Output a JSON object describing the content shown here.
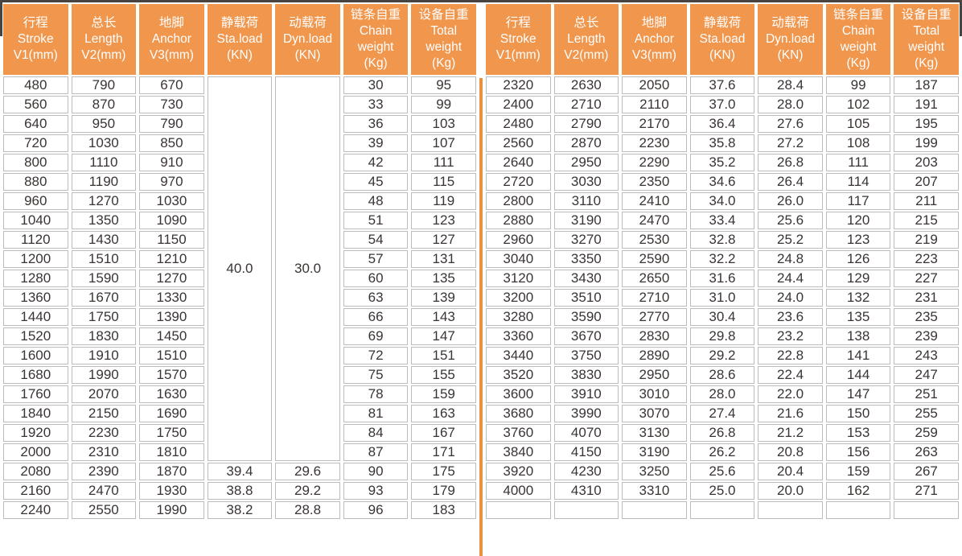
{
  "colors": {
    "header_bg": "#F0964D",
    "header_text": "#FFFFFF",
    "divider_orange": "#E9913F",
    "cell_border": "#BCBCBC",
    "data_text": "#3A3433",
    "outer_frame": "#484441"
  },
  "table": {
    "headers": [
      "行程\nStroke\nV1(mm)",
      "总长\nLength\nV2(mm)",
      "地脚\nAnchor\nV3(mm)",
      "静载荷\nSta.load\n(KN)",
      "动载荷\nDyn.load\n(KN)",
      "链条自重\nChain\nweight\n(Kg)",
      "设备自重\nTotal\nweight\n(Kg)"
    ],
    "column_keys": [
      "stroke",
      "length",
      "anchor",
      "sta-load",
      "dyn-load",
      "chain-weight",
      "total-weight"
    ],
    "left": {
      "merged_sta_load": "40.0",
      "merged_dyn_load": "30.0",
      "merged_row_span": 20,
      "rows": [
        [
          "480",
          "790",
          "670",
          "30",
          "95"
        ],
        [
          "560",
          "870",
          "730",
          "33",
          "99"
        ],
        [
          "640",
          "950",
          "790",
          "36",
          "103"
        ],
        [
          "720",
          "1030",
          "850",
          "39",
          "107"
        ],
        [
          "800",
          "1110",
          "910",
          "42",
          "111"
        ],
        [
          "880",
          "1190",
          "970",
          "45",
          "115"
        ],
        [
          "960",
          "1270",
          "1030",
          "48",
          "119"
        ],
        [
          "1040",
          "1350",
          "1090",
          "51",
          "123"
        ],
        [
          "1120",
          "1430",
          "1150",
          "54",
          "127"
        ],
        [
          "1200",
          "1510",
          "1210",
          "57",
          "131"
        ],
        [
          "1280",
          "1590",
          "1270",
          "60",
          "135"
        ],
        [
          "1360",
          "1670",
          "1330",
          "63",
          "139"
        ],
        [
          "1440",
          "1750",
          "1390",
          "66",
          "143"
        ],
        [
          "1520",
          "1830",
          "1450",
          "69",
          "147"
        ],
        [
          "1600",
          "1910",
          "1510",
          "72",
          "151"
        ],
        [
          "1680",
          "1990",
          "1570",
          "75",
          "155"
        ],
        [
          "1760",
          "2070",
          "1630",
          "78",
          "159"
        ],
        [
          "1840",
          "2150",
          "1690",
          "81",
          "163"
        ],
        [
          "1920",
          "2230",
          "1750",
          "84",
          "167"
        ],
        [
          "2000",
          "2310",
          "1810",
          "87",
          "171"
        ],
        [
          "2080",
          "2390",
          "1870",
          "39.4",
          "29.6",
          "90",
          "175"
        ],
        [
          "2160",
          "2470",
          "1930",
          "38.8",
          "29.2",
          "93",
          "179"
        ],
        [
          "2240",
          "2550",
          "1990",
          "38.2",
          "28.8",
          "96",
          "183"
        ]
      ]
    },
    "right": {
      "rows": [
        [
          "2320",
          "2630",
          "2050",
          "37.6",
          "28.4",
          "99",
          "187"
        ],
        [
          "2400",
          "2710",
          "2110",
          "37.0",
          "28.0",
          "102",
          "191"
        ],
        [
          "2480",
          "2790",
          "2170",
          "36.4",
          "27.6",
          "105",
          "195"
        ],
        [
          "2560",
          "2870",
          "2230",
          "35.8",
          "27.2",
          "108",
          "199"
        ],
        [
          "2640",
          "2950",
          "2290",
          "35.2",
          "26.8",
          "111",
          "203"
        ],
        [
          "2720",
          "3030",
          "2350",
          "34.6",
          "26.4",
          "114",
          "207"
        ],
        [
          "2800",
          "3110",
          "2410",
          "34.0",
          "26.0",
          "117",
          "211"
        ],
        [
          "2880",
          "3190",
          "2470",
          "33.4",
          "25.6",
          "120",
          "215"
        ],
        [
          "2960",
          "3270",
          "2530",
          "32.8",
          "25.2",
          "123",
          "219"
        ],
        [
          "3040",
          "3350",
          "2590",
          "32.2",
          "24.8",
          "126",
          "223"
        ],
        [
          "3120",
          "3430",
          "2650",
          "31.6",
          "24.4",
          "129",
          "227"
        ],
        [
          "3200",
          "3510",
          "2710",
          "31.0",
          "24.0",
          "132",
          "231"
        ],
        [
          "3280",
          "3590",
          "2770",
          "30.4",
          "23.6",
          "135",
          "235"
        ],
        [
          "3360",
          "3670",
          "2830",
          "29.8",
          "23.2",
          "138",
          "239"
        ],
        [
          "3440",
          "3750",
          "2890",
          "29.2",
          "22.8",
          "141",
          "243"
        ],
        [
          "3520",
          "3830",
          "2950",
          "28.6",
          "22.4",
          "144",
          "247"
        ],
        [
          "3600",
          "3910",
          "3010",
          "28.0",
          "22.0",
          "147",
          "251"
        ],
        [
          "3680",
          "3990",
          "3070",
          "27.4",
          "21.6",
          "150",
          "255"
        ],
        [
          "3760",
          "4070",
          "3130",
          "26.8",
          "21.2",
          "153",
          "259"
        ],
        [
          "3840",
          "4150",
          "3190",
          "26.2",
          "20.8",
          "156",
          "263"
        ],
        [
          "3920",
          "4230",
          "3250",
          "25.6",
          "20.4",
          "159",
          "267"
        ],
        [
          "4000",
          "4310",
          "3310",
          "25.0",
          "20.0",
          "162",
          "271"
        ],
        [
          "",
          "",
          "",
          "",
          "",
          "",
          ""
        ]
      ]
    }
  }
}
